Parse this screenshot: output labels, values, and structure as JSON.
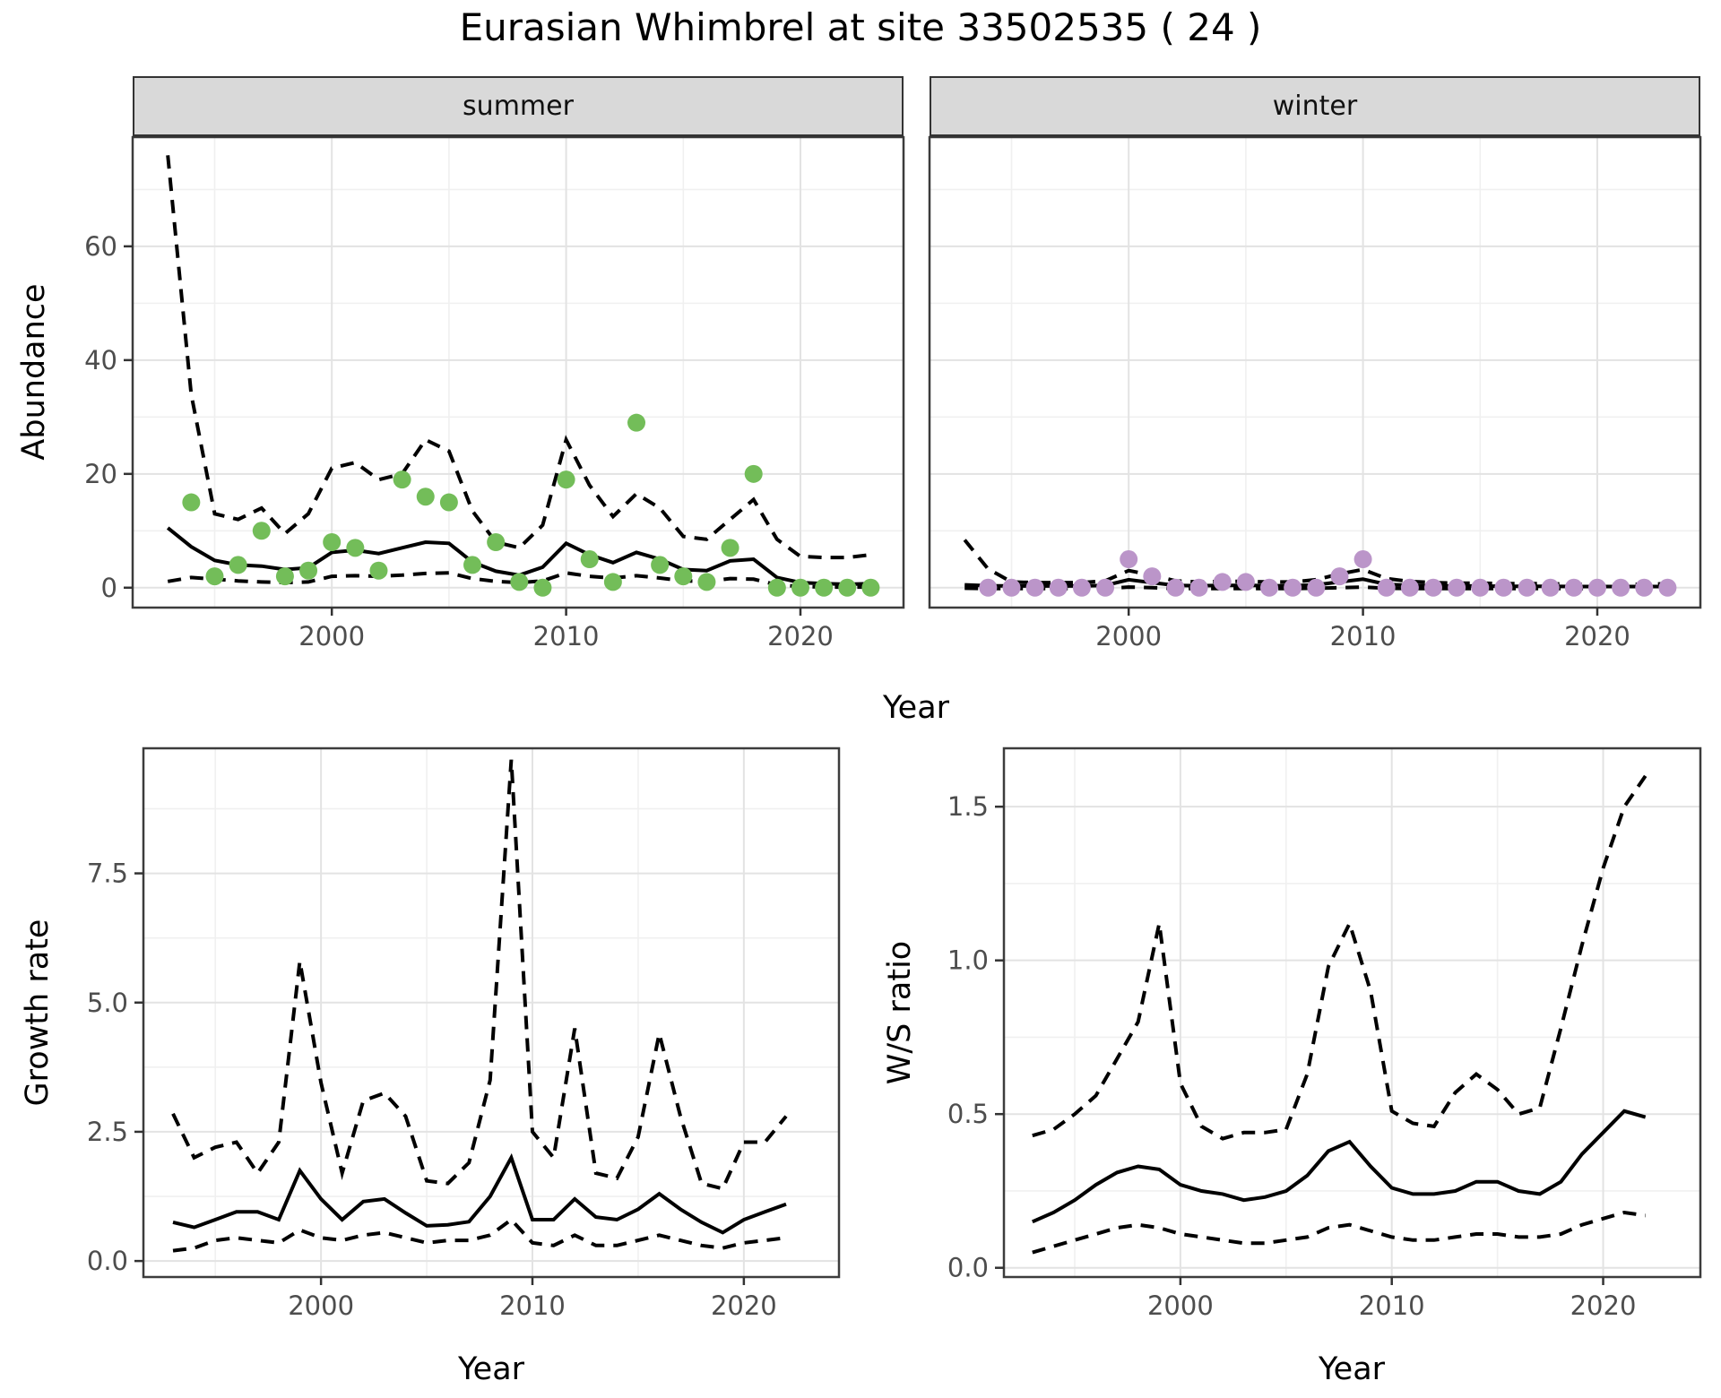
{
  "title": "Eurasian Whimbrel at site 33502535 ( 24 )",
  "facet_labels": [
    "summer",
    "winter"
  ],
  "axes": {
    "x_label": "Year",
    "abundance_label": "Abundance",
    "growth_label": "Growth rate",
    "ws_label": "W/S ratio"
  },
  "colors": {
    "summer_point": "#73bd59",
    "winter_point": "#bb95c9",
    "line": "#000000",
    "strip_bg": "#d9d9d9",
    "panel_border": "#3c3c3c",
    "grid_major": "#e3e3e3",
    "grid_minor": "#f0f0f0",
    "tick_text": "#4d4d4d"
  },
  "chart_data": [
    {
      "id": "abundance",
      "type": "line+scatter",
      "xlabel": "Year",
      "ylabel": "Abundance",
      "x_ticks": [
        2000,
        2010,
        2020
      ],
      "x_tick_labels": [
        "2000",
        "2010",
        "2020"
      ],
      "x_minor_ticks": [
        1995,
        2005,
        2015
      ],
      "y_ticks": [
        0,
        20,
        40,
        60
      ],
      "y_tick_labels": [
        "0",
        "20",
        "40",
        "60"
      ],
      "y_minor_ticks": [
        10,
        30,
        50,
        70
      ],
      "xlim": [
        1991.5,
        2024.4
      ],
      "ylim": [
        -3.5,
        79.2
      ],
      "years": [
        1993,
        1994,
        1995,
        1996,
        1997,
        1998,
        1999,
        2000,
        2001,
        2002,
        2003,
        2004,
        2005,
        2006,
        2007,
        2008,
        2009,
        2010,
        2011,
        2012,
        2013,
        2014,
        2015,
        2016,
        2017,
        2018,
        2019,
        2020,
        2021,
        2022,
        2023
      ],
      "facets": [
        {
          "label": "summer",
          "point_color": "#73bd59",
          "observed": [
            null,
            15,
            2,
            4,
            10,
            2,
            3,
            8,
            7,
            3,
            19,
            16,
            15,
            4,
            8,
            1,
            0,
            19,
            5,
            1,
            29,
            4,
            2,
            1,
            7,
            20,
            0,
            0,
            0,
            0,
            0
          ],
          "fit": [
            10.5,
            7.2,
            4.8,
            4.0,
            3.8,
            3.2,
            3.5,
            6.2,
            6.6,
            6.0,
            7.0,
            8.0,
            7.8,
            4.5,
            2.9,
            2.2,
            3.6,
            7.8,
            5.8,
            4.4,
            6.2,
            5.0,
            3.2,
            3.0,
            4.7,
            5.0,
            1.8,
            0.9,
            0.7,
            0.6,
            0.7
          ],
          "ci_upper": [
            76,
            34,
            13,
            12,
            14,
            9.5,
            13,
            21,
            22,
            19,
            20,
            26,
            24,
            13.5,
            8,
            7,
            11,
            26,
            18,
            12.5,
            16.5,
            14,
            9,
            8.5,
            12,
            15.5,
            8.5,
            5.5,
            5.3,
            5.3,
            5.8
          ],
          "ci_lower": [
            1.1,
            1.8,
            1.5,
            1.2,
            1.0,
            0.9,
            1.0,
            2.0,
            2.1,
            2.0,
            2.2,
            2.5,
            2.6,
            1.6,
            1.1,
            0.9,
            1.2,
            2.6,
            2.0,
            1.7,
            2.1,
            1.7,
            1.2,
            1.1,
            1.6,
            1.5,
            0.5,
            0.2,
            0.1,
            0.1,
            0.1
          ]
        },
        {
          "label": "winter",
          "point_color": "#bb95c9",
          "observed": [
            null,
            0,
            0,
            0,
            0,
            0,
            0,
            5,
            2,
            0,
            0,
            1,
            1,
            0,
            0,
            0,
            2,
            5,
            0,
            0,
            0,
            0,
            0,
            0,
            0,
            0,
            0,
            0,
            0,
            0,
            0
          ],
          "fit": [
            0.5,
            0.35,
            0.3,
            0.3,
            0.3,
            0.3,
            0.4,
            1.4,
            0.9,
            0.4,
            0.35,
            0.4,
            0.4,
            0.35,
            0.35,
            0.5,
            1.0,
            1.5,
            0.6,
            0.4,
            0.3,
            0.3,
            0.3,
            0.25,
            0.25,
            0.25,
            0.2,
            0.2,
            0.2,
            0.2,
            0.2
          ],
          "ci_upper": [
            8.4,
            3.3,
            1.0,
            0.9,
            0.9,
            0.9,
            1.2,
            3.0,
            2.2,
            1.2,
            1.0,
            1.1,
            1.1,
            1.0,
            1.0,
            1.4,
            2.4,
            3.2,
            1.6,
            1.1,
            0.9,
            0.8,
            0.8,
            0.7,
            0.7,
            0.7,
            0.6,
            0.6,
            0.6,
            0.6,
            0.7
          ],
          "ci_lower": [
            -0.1,
            -0.15,
            -0.15,
            -0.15,
            -0.15,
            -0.15,
            -0.15,
            0.1,
            0,
            -0.15,
            -0.15,
            -0.15,
            -0.15,
            -0.15,
            -0.15,
            -0.1,
            0,
            0.1,
            -0.1,
            -0.15,
            -0.15,
            -0.15,
            -0.15,
            -0.15,
            -0.15,
            -0.15,
            -0.15,
            -0.15,
            -0.15,
            -0.15,
            -0.1
          ]
        }
      ]
    },
    {
      "id": "growth_rate",
      "type": "line",
      "xlabel": "Year",
      "ylabel": "Growth rate",
      "x_ticks": [
        2000,
        2010,
        2020
      ],
      "x_tick_labels": [
        "2000",
        "2010",
        "2020"
      ],
      "x_minor_ticks": [
        1995,
        2005,
        2015
      ],
      "y_ticks": [
        0,
        2.5,
        5,
        7.5
      ],
      "y_tick_labels": [
        "0.0",
        "2.5",
        "5.0",
        "7.5"
      ],
      "y_minor_ticks": [
        1.25,
        3.75,
        6.25,
        8.75
      ],
      "xlim": [
        1991.6,
        2024.5
      ],
      "ylim": [
        -0.31,
        9.92
      ],
      "years": [
        1993,
        1994,
        1995,
        1996,
        1997,
        1998,
        1999,
        2000,
        2001,
        2002,
        2003,
        2004,
        2005,
        2006,
        2007,
        2008,
        2009,
        2010,
        2011,
        2012,
        2013,
        2014,
        2015,
        2016,
        2017,
        2018,
        2019,
        2020,
        2021,
        2022
      ],
      "fit": [
        0.75,
        0.65,
        0.8,
        0.95,
        0.95,
        0.8,
        1.75,
        1.2,
        0.8,
        1.15,
        1.2,
        0.93,
        0.68,
        0.7,
        0.76,
        1.25,
        2.0,
        0.8,
        0.8,
        1.2,
        0.85,
        0.8,
        1.0,
        1.3,
        1.0,
        0.75,
        0.55,
        0.8,
        0.95,
        1.1
      ],
      "ci_upper": [
        2.85,
        2.0,
        2.2,
        2.3,
        1.7,
        2.3,
        5.8,
        3.45,
        1.7,
        3.1,
        3.25,
        2.8,
        1.55,
        1.5,
        1.9,
        3.5,
        9.7,
        2.5,
        2.0,
        4.5,
        1.7,
        1.6,
        2.4,
        4.4,
        2.8,
        1.5,
        1.4,
        2.3,
        2.3,
        2.8
      ],
      "ci_lower": [
        0.2,
        0.25,
        0.4,
        0.45,
        0.4,
        0.35,
        0.6,
        0.45,
        0.4,
        0.5,
        0.55,
        0.45,
        0.35,
        0.4,
        0.4,
        0.5,
        0.8,
        0.35,
        0.3,
        0.5,
        0.3,
        0.3,
        0.4,
        0.5,
        0.4,
        0.3,
        0.25,
        0.35,
        0.4,
        0.45
      ]
    },
    {
      "id": "ws_ratio",
      "type": "line",
      "xlabel": "Year",
      "ylabel": "W/S ratio",
      "x_ticks": [
        2000,
        2010,
        2020
      ],
      "x_tick_labels": [
        "2000",
        "2010",
        "2020"
      ],
      "x_minor_ticks": [
        1995,
        2005,
        2015
      ],
      "y_ticks": [
        0,
        0.5,
        1,
        1.5
      ],
      "y_tick_labels": [
        "0.0",
        "0.5",
        "1.0",
        "1.5"
      ],
      "y_minor_ticks": [
        0.25,
        0.75,
        1.25
      ],
      "xlim": [
        1991.65,
        2024.6
      ],
      "ylim": [
        -0.03,
        1.69
      ],
      "years": [
        1993,
        1994,
        1995,
        1996,
        1997,
        1998,
        1999,
        2000,
        2001,
        2002,
        2003,
        2004,
        2005,
        2006,
        2007,
        2008,
        2009,
        2010,
        2011,
        2012,
        2013,
        2014,
        2015,
        2016,
        2017,
        2018,
        2019,
        2020,
        2021,
        2022
      ],
      "fit": [
        0.15,
        0.18,
        0.22,
        0.27,
        0.31,
        0.33,
        0.32,
        0.27,
        0.25,
        0.24,
        0.22,
        0.23,
        0.25,
        0.3,
        0.38,
        0.41,
        0.33,
        0.26,
        0.24,
        0.24,
        0.25,
        0.28,
        0.28,
        0.25,
        0.24,
        0.28,
        0.37,
        0.44,
        0.51,
        0.49
      ],
      "ci_upper": [
        0.43,
        0.45,
        0.5,
        0.56,
        0.68,
        0.8,
        1.12,
        0.6,
        0.46,
        0.42,
        0.44,
        0.44,
        0.45,
        0.63,
        0.98,
        1.12,
        0.9,
        0.51,
        0.47,
        0.46,
        0.57,
        0.63,
        0.58,
        0.5,
        0.52,
        0.78,
        1.05,
        1.3,
        1.5,
        1.6
      ],
      "ci_lower": [
        0.05,
        0.07,
        0.09,
        0.11,
        0.13,
        0.14,
        0.13,
        0.11,
        0.1,
        0.09,
        0.08,
        0.08,
        0.09,
        0.1,
        0.13,
        0.14,
        0.12,
        0.1,
        0.09,
        0.09,
        0.1,
        0.11,
        0.11,
        0.1,
        0.1,
        0.11,
        0.14,
        0.16,
        0.18,
        0.17
      ]
    }
  ]
}
